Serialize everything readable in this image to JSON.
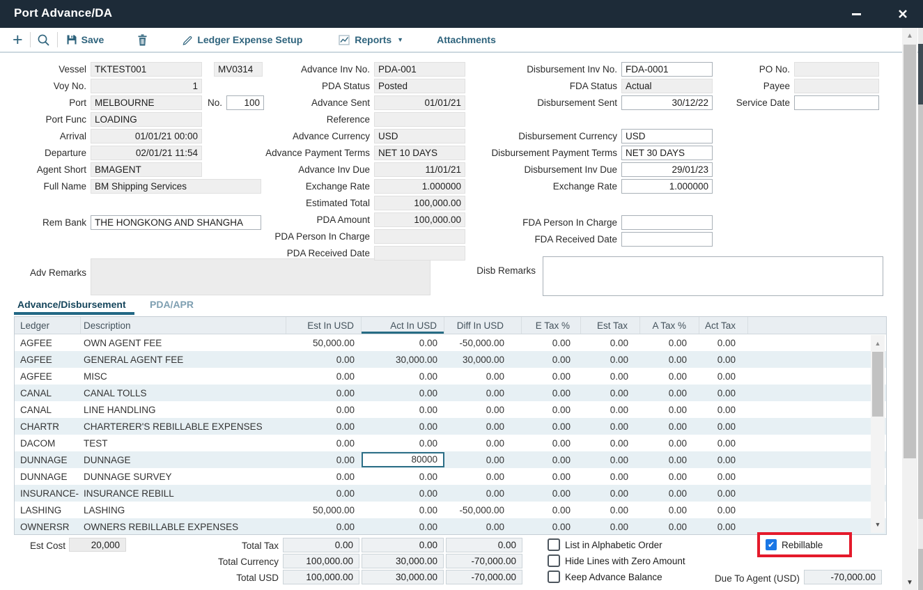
{
  "window": {
    "title": "Port Advance/DA"
  },
  "colors": {
    "titlebar": "#1d2b38",
    "accent": "#2e637c",
    "tab_underline": "#226784",
    "row_alt": "#e7f0f4",
    "edited_cell_border": "#2b6e86",
    "highlight_red": "#e41a2b",
    "checkbox_blue": "#1976e5"
  },
  "icons": {
    "plus": "+",
    "caret_down": "▼",
    "check": "✔",
    "scroll_up": "▲",
    "scroll_down": "▼"
  },
  "toolbar": {
    "save": "Save",
    "ledger_expense_setup": "Ledger Expense Setup",
    "reports": "Reports",
    "attachments": "Attachments"
  },
  "form": {
    "vessel": {
      "label": "Vessel",
      "value": "TKTEST001",
      "code": "MV0314"
    },
    "voy_no": {
      "label": "Voy No.",
      "value": "1"
    },
    "port": {
      "label": "Port",
      "value": "MELBOURNE",
      "no_label": "No.",
      "no_value": "100"
    },
    "port_func": {
      "label": "Port Func",
      "value": "LOADING"
    },
    "arrival": {
      "label": "Arrival",
      "value": "01/01/21 00:00"
    },
    "departure": {
      "label": "Departure",
      "value": "02/01/21 11:54"
    },
    "agent_short": {
      "label": "Agent Short",
      "value": "BMAGENT"
    },
    "full_name": {
      "label": "Full Name",
      "value": "BM Shipping Services"
    },
    "rem_bank": {
      "label": "Rem Bank",
      "value": "THE HONGKONG AND SHANGHA"
    },
    "adv_remarks": {
      "label": "Adv Remarks",
      "value": ""
    },
    "advance_inv_no": {
      "label": "Advance Inv No.",
      "value": "PDA-001"
    },
    "pda_status": {
      "label": "PDA Status",
      "value": "Posted"
    },
    "advance_sent": {
      "label": "Advance Sent",
      "value": "01/01/21"
    },
    "reference": {
      "label": "Reference",
      "value": ""
    },
    "advance_currency": {
      "label": "Advance Currency",
      "value": "USD"
    },
    "advance_payment_terms": {
      "label": "Advance Payment Terms",
      "value": "NET 10 DAYS"
    },
    "advance_inv_due": {
      "label": "Advance Inv Due",
      "value": "11/01/21"
    },
    "exchange_rate_adv": {
      "label": "Exchange Rate",
      "value": "1.000000"
    },
    "estimated_total": {
      "label": "Estimated Total",
      "value": "100,000.00"
    },
    "pda_amount": {
      "label": "PDA Amount",
      "value": "100,000.00"
    },
    "pda_person_in_charge": {
      "label": "PDA Person In Charge",
      "value": ""
    },
    "pda_received_date": {
      "label": "PDA Received Date",
      "value": ""
    },
    "disbursement_inv_no": {
      "label": "Disbursement Inv No.",
      "value": "FDA-0001"
    },
    "fda_status": {
      "label": "FDA Status",
      "value": "Actual"
    },
    "disbursement_sent": {
      "label": "Disbursement Sent",
      "value": "30/12/22"
    },
    "disbursement_currency": {
      "label": "Disbursement Currency",
      "value": "USD"
    },
    "disbursement_payment_terms": {
      "label": "Disbursement Payment Terms",
      "value": "NET 30 DAYS"
    },
    "disbursement_inv_due": {
      "label": "Disbursement Inv Due",
      "value": "29/01/23"
    },
    "exchange_rate_disb": {
      "label": "Exchange Rate",
      "value": "1.000000"
    },
    "fda_person_in_charge": {
      "label": "FDA Person In Charge",
      "value": ""
    },
    "fda_received_date": {
      "label": "FDA Received Date",
      "value": ""
    },
    "po_no": {
      "label": "PO No.",
      "value": ""
    },
    "payee": {
      "label": "Payee",
      "value": ""
    },
    "service_date": {
      "label": "Service Date",
      "value": ""
    },
    "disb_remarks": {
      "label": "Disb Remarks",
      "value": ""
    }
  },
  "tabs": {
    "advance_disbursement": "Advance/Disbursement",
    "pda_apr": "PDA/APR"
  },
  "table": {
    "columns": [
      "Ledger",
      "Description",
      "Est In USD",
      "Act In USD",
      "Diff In USD",
      "E Tax %",
      "Est Tax",
      "A Tax %",
      "Act Tax"
    ],
    "sorted_column_index": 3,
    "rows": [
      [
        "AGFEE",
        "OWN AGENT FEE",
        "50,000.00",
        "0.00",
        "-50,000.00",
        "0.00",
        "0.00",
        "0.00",
        "0.00"
      ],
      [
        "AGFEE",
        "GENERAL AGENT FEE",
        "0.00",
        "30,000.00",
        "30,000.00",
        "0.00",
        "0.00",
        "0.00",
        "0.00"
      ],
      [
        "AGFEE",
        "MISC",
        "0.00",
        "0.00",
        "0.00",
        "0.00",
        "0.00",
        "0.00",
        "0.00"
      ],
      [
        "CANAL",
        "CANAL TOLLS",
        "0.00",
        "0.00",
        "0.00",
        "0.00",
        "0.00",
        "0.00",
        "0.00"
      ],
      [
        "CANAL",
        "LINE HANDLING",
        "0.00",
        "0.00",
        "0.00",
        "0.00",
        "0.00",
        "0.00",
        "0.00"
      ],
      [
        "CHARTR",
        "CHARTERER'S REBILLABLE EXPENSES",
        "0.00",
        "0.00",
        "0.00",
        "0.00",
        "0.00",
        "0.00",
        "0.00"
      ],
      [
        "DACOM",
        "TEST",
        "0.00",
        "0.00",
        "0.00",
        "0.00",
        "0.00",
        "0.00",
        "0.00"
      ],
      [
        "DUNNAGE",
        "DUNNAGE",
        "0.00",
        "80000",
        "0.00",
        "0.00",
        "0.00",
        "0.00",
        "0.00"
      ],
      [
        "DUNNAGE",
        "DUNNAGE SURVEY",
        "0.00",
        "0.00",
        "0.00",
        "0.00",
        "0.00",
        "0.00",
        "0.00"
      ],
      [
        "INSURANCE-",
        "INSURANCE REBILL",
        "0.00",
        "0.00",
        "0.00",
        "0.00",
        "0.00",
        "0.00",
        "0.00"
      ],
      [
        "LASHING",
        "LASHING",
        "50,000.00",
        "0.00",
        "-50,000.00",
        "0.00",
        "0.00",
        "0.00",
        "0.00"
      ],
      [
        "OWNERSR",
        "OWNERS REBILLABLE EXPENSES",
        "0.00",
        "0.00",
        "0.00",
        "0.00",
        "0.00",
        "0.00",
        "0.00"
      ]
    ],
    "edited_cell": {
      "row": 7,
      "col": 3,
      "value": "80000"
    }
  },
  "totals": {
    "est_cost": {
      "label": "Est Cost",
      "value": "20,000"
    },
    "rows": [
      {
        "label": "Total Tax",
        "est": "0.00",
        "act": "0.00",
        "diff": "0.00"
      },
      {
        "label": "Total Currency",
        "est": "100,000.00",
        "act": "30,000.00",
        "diff": "-70,000.00"
      },
      {
        "label": "Total USD",
        "est": "100,000.00",
        "act": "30,000.00",
        "diff": "-70,000.00"
      }
    ]
  },
  "options": {
    "list_alpha": {
      "label": "List in Alphabetic Order",
      "checked": false
    },
    "hide_zero": {
      "label": "Hide Lines with Zero Amount",
      "checked": false
    },
    "keep_advance": {
      "label": "Keep Advance Balance",
      "checked": false
    },
    "rebillable": {
      "label": "Rebillable",
      "checked": true
    }
  },
  "due_to_agent": {
    "label": "Due To Agent (USD)",
    "value": "-70,000.00"
  }
}
